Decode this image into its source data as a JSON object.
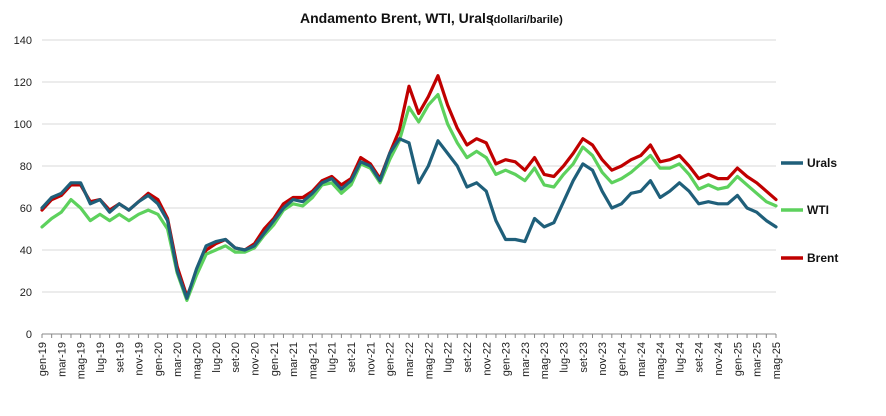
{
  "chart_data": {
    "type": "line",
    "title": "Andamento Brent, WTI, Urals",
    "subtitle": "(dollari/barile)",
    "xlabel": "",
    "ylabel": "",
    "ylim": [
      0,
      140
    ],
    "yticks": [
      "0",
      "20",
      "40",
      "60",
      "80",
      "100",
      "120",
      "140"
    ],
    "grid": true,
    "legend_position": "right",
    "x": [
      "gen-19",
      "feb-19",
      "mar-19",
      "apr-19",
      "mag-19",
      "giu-19",
      "lug-19",
      "ago-19",
      "set-19",
      "ott-19",
      "nov-19",
      "dic-19",
      "gen-20",
      "feb-20",
      "mar-20",
      "apr-20",
      "mag-20",
      "giu-20",
      "lug-20",
      "ago-20",
      "set-20",
      "ott-20",
      "nov-20",
      "dic-20",
      "gen-21",
      "feb-21",
      "mar-21",
      "apr-21",
      "mag-21",
      "giu-21",
      "lug-21",
      "ago-21",
      "set-21",
      "ott-21",
      "nov-21",
      "dic-21",
      "gen-22",
      "feb-22",
      "mar-22",
      "apr-22",
      "mag-22",
      "giu-22",
      "lug-22",
      "ago-22",
      "set-22",
      "ott-22",
      "nov-22",
      "dic-22",
      "gen-23",
      "feb-23",
      "mar-23",
      "apr-23",
      "mag-23",
      "giu-23",
      "lug-23",
      "ago-23",
      "set-23",
      "ott-23",
      "nov-23",
      "dic-23",
      "gen-24",
      "feb-24",
      "mar-24",
      "apr-24",
      "mag-24",
      "giu-24",
      "lug-24",
      "ago-24",
      "set-24",
      "ott-24",
      "nov-24",
      "dic-24",
      "gen-25",
      "feb-25",
      "mar-25",
      "apr-25",
      "mag-25"
    ],
    "xtick_labels": [
      "gen-19",
      "mar-19",
      "mag-19",
      "lug-19",
      "set-19",
      "nov-19",
      "gen-20",
      "mar-20",
      "mag-20",
      "lug-20",
      "set-20",
      "nov-20",
      "gen-21",
      "mar-21",
      "mag-21",
      "lug-21",
      "set-21",
      "nov-21",
      "gen-22",
      "mar-22",
      "mag-22",
      "lug-22",
      "set-22",
      "nov-22",
      "gen-23",
      "mar-23",
      "mag-23",
      "lug-23",
      "set-23",
      "nov-23",
      "gen-24",
      "mar-24",
      "mag-24",
      "lug-24",
      "set-24",
      "nov-24",
      "gen-25",
      "mar-25",
      "mag-25"
    ],
    "series": [
      {
        "name": "Urals",
        "color": "#1F5F7A",
        "values": [
          60,
          65,
          67,
          72,
          72,
          62,
          64,
          58,
          62,
          59,
          63,
          66,
          62,
          54,
          30,
          17,
          31,
          42,
          44,
          45,
          41,
          40,
          42,
          48,
          54,
          60,
          64,
          63,
          67,
          72,
          74,
          69,
          73,
          82,
          80,
          73,
          86,
          93,
          91,
          72,
          80,
          92,
          86,
          80,
          70,
          72,
          68,
          54,
          45,
          45,
          44,
          55,
          51,
          53,
          63,
          73,
          81,
          78,
          68,
          60,
          62,
          67,
          68,
          73,
          65,
          68,
          72,
          68,
          62,
          63,
          62,
          62,
          66,
          60,
          58,
          54,
          51
        ]
      },
      {
        "name": "WTI",
        "color": "#5DD15D",
        "values": [
          51,
          55,
          58,
          64,
          60,
          54,
          57,
          54,
          57,
          54,
          57,
          59,
          57,
          50,
          29,
          16,
          28,
          38,
          40,
          42,
          39,
          39,
          41,
          47,
          52,
          59,
          62,
          61,
          65,
          71,
          72,
          67,
          71,
          81,
          79,
          72,
          83,
          92,
          108,
          101,
          109,
          114,
          100,
          91,
          84,
          87,
          84,
          76,
          78,
          76,
          73,
          79,
          71,
          70,
          76,
          81,
          89,
          85,
          77,
          72,
          74,
          77,
          81,
          85,
          79,
          79,
          81,
          76,
          69,
          71,
          69,
          70,
          75,
          71,
          67,
          63,
          61
        ]
      },
      {
        "name": "Brent",
        "color": "#C00000",
        "values": [
          59,
          64,
          66,
          71,
          71,
          63,
          64,
          59,
          62,
          59,
          63,
          67,
          64,
          55,
          32,
          18,
          29,
          40,
          43,
          45,
          41,
          40,
          43,
          50,
          55,
          62,
          65,
          65,
          68,
          73,
          75,
          71,
          74,
          84,
          81,
          74,
          86,
          97,
          118,
          105,
          113,
          123,
          109,
          98,
          90,
          93,
          91,
          81,
          83,
          82,
          78,
          84,
          76,
          75,
          80,
          86,
          93,
          90,
          83,
          78,
          80,
          83,
          85,
          90,
          82,
          83,
          85,
          80,
          74,
          76,
          74,
          74,
          79,
          75,
          72,
          68,
          64
        ]
      }
    ]
  }
}
